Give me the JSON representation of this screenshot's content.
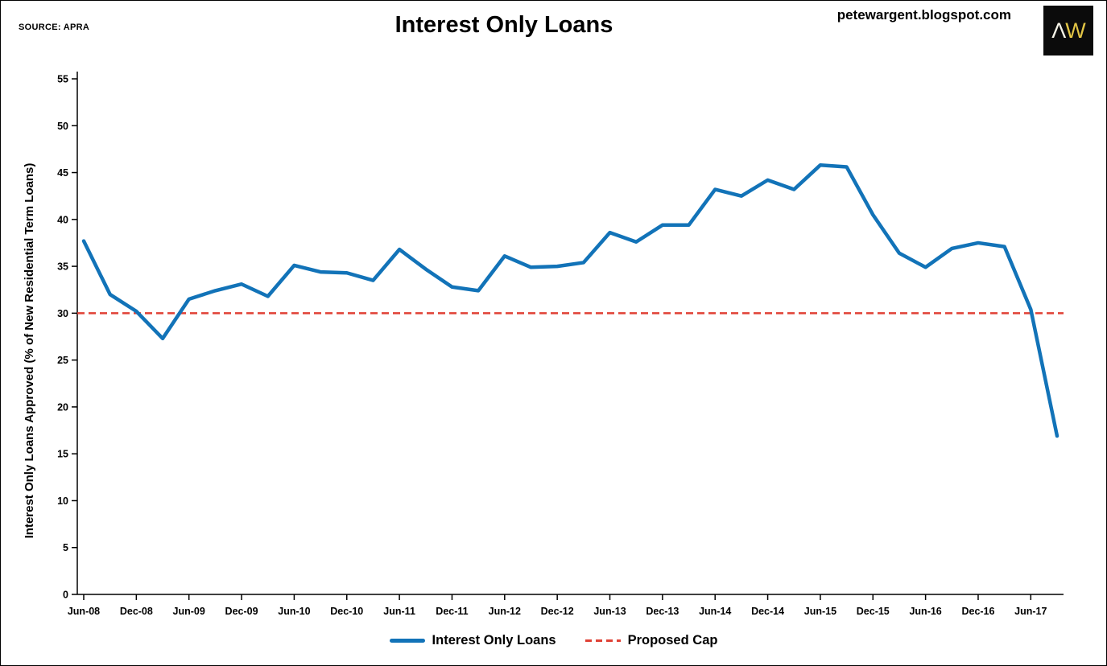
{
  "header": {
    "source": "SOURCE: APRA",
    "title": "Interest Only Loans",
    "blog_url": "petewargent.blogspot.com",
    "logo": {
      "left_char": "Λ",
      "right_char": "W",
      "bg": "#0b0b0b",
      "left_color": "#f4f2e6",
      "right_color": "#e2c545"
    }
  },
  "legend": {
    "items": [
      {
        "label": "Interest Only Loans",
        "color": "#1273b8",
        "style": "solid"
      },
      {
        "label": "Proposed Cap",
        "color": "#e04135",
        "style": "dashed"
      }
    ]
  },
  "chart_data": {
    "type": "line",
    "title": "Interest Only Loans",
    "xlabel": "",
    "ylabel": "Interest Only Loans Approved (% of New Residential Term Loans)",
    "ylim": [
      0,
      55
    ],
    "ytick_step": 5,
    "grid": false,
    "legend_position": "bottom",
    "x_label_every": 2,
    "x": [
      "Jun-08",
      "Sep-08",
      "Dec-08",
      "Mar-09",
      "Jun-09",
      "Sep-09",
      "Dec-09",
      "Mar-10",
      "Jun-10",
      "Sep-10",
      "Dec-10",
      "Mar-11",
      "Jun-11",
      "Sep-11",
      "Dec-11",
      "Mar-12",
      "Jun-12",
      "Sep-12",
      "Dec-12",
      "Mar-13",
      "Jun-13",
      "Sep-13",
      "Dec-13",
      "Mar-14",
      "Jun-14",
      "Sep-14",
      "Dec-14",
      "Mar-15",
      "Jun-15",
      "Sep-15",
      "Dec-15",
      "Mar-16",
      "Jun-16",
      "Sep-16",
      "Dec-16",
      "Mar-17",
      "Jun-17",
      "Sep-17"
    ],
    "series": [
      {
        "name": "Interest Only Loans",
        "type": "line",
        "color": "#1273b8",
        "values": [
          37.7,
          32.0,
          30.2,
          27.3,
          31.5,
          32.4,
          33.1,
          31.8,
          35.1,
          34.4,
          34.3,
          33.5,
          36.8,
          34.7,
          32.8,
          32.4,
          36.1,
          34.9,
          35.0,
          35.4,
          38.6,
          37.6,
          39.4,
          39.4,
          43.2,
          42.5,
          44.2,
          43.2,
          45.8,
          45.6,
          40.5,
          36.4,
          34.9,
          36.9,
          37.5,
          37.1,
          30.4,
          16.9
        ]
      },
      {
        "name": "Proposed Cap",
        "type": "hline",
        "color": "#e04135",
        "dashed": true,
        "value": 30
      }
    ]
  }
}
